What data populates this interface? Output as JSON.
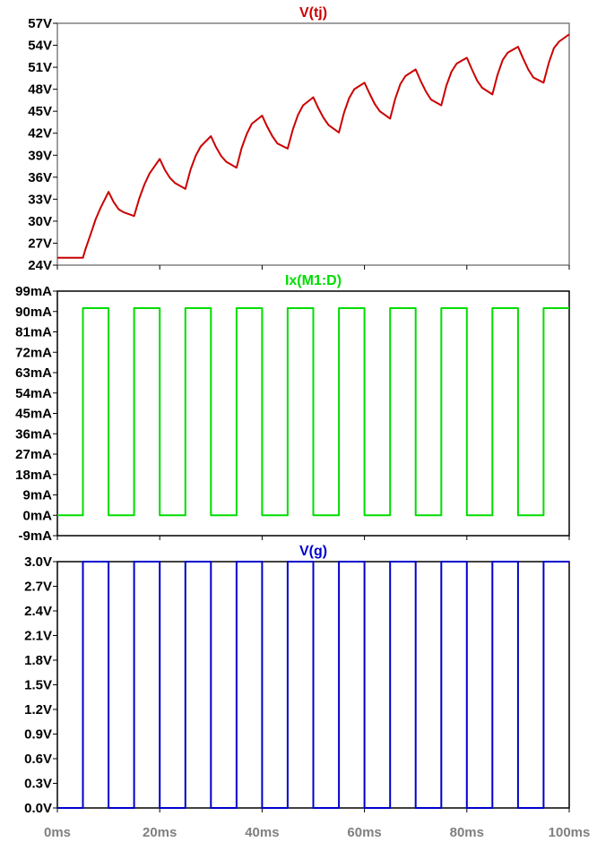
{
  "chart_data": [
    {
      "type": "line",
      "title": "V(tj)",
      "color": "#cc0000",
      "xlim": [
        0,
        100
      ],
      "ylim": [
        24,
        57
      ],
      "yticks": [
        24,
        27,
        30,
        33,
        36,
        39,
        42,
        45,
        48,
        51,
        54,
        57
      ],
      "ytick_labels": [
        "24V",
        "27V",
        "30V",
        "33V",
        "36V",
        "39V",
        "42V",
        "45V",
        "48V",
        "51V",
        "54V",
        "57V"
      ],
      "series": [
        {
          "x": [
            0,
            5,
            5.5,
            6.5,
            7.5,
            8.5,
            10,
            11,
            12,
            13,
            15,
            16,
            17,
            18,
            20,
            21,
            22,
            23,
            25,
            26,
            27,
            28,
            30,
            31,
            32,
            33,
            35,
            36,
            37,
            38,
            40,
            41,
            42,
            43,
            45,
            46,
            47,
            48,
            50,
            51,
            52,
            53,
            55,
            56,
            57,
            58,
            60,
            61,
            62,
            63,
            65,
            66,
            67,
            68,
            70,
            71,
            72,
            73,
            75,
            76,
            77,
            78,
            80,
            81,
            82,
            83,
            85,
            86,
            87,
            88,
            90,
            91,
            92,
            93,
            95,
            96,
            97,
            98,
            100
          ],
          "y": [
            25,
            25,
            26.2,
            28.2,
            30.3,
            31.9,
            34,
            32.6,
            31.6,
            31.2,
            30.7,
            33.1,
            35,
            36.5,
            38.5,
            37,
            35.9,
            35.2,
            34.4,
            37,
            38.9,
            40.2,
            41.6,
            40.1,
            38.9,
            38.1,
            37.3,
            40,
            41.9,
            43.3,
            44.4,
            42.9,
            41.6,
            40.6,
            39.9,
            42.5,
            44.5,
            45.8,
            46.9,
            45.4,
            44.1,
            43.1,
            42.1,
            44.8,
            46.8,
            48,
            48.9,
            47.4,
            46,
            45,
            44,
            46.7,
            48.7,
            49.8,
            50.7,
            49.1,
            47.7,
            46.6,
            45.8,
            48.5,
            50.4,
            51.5,
            52.3,
            50.7,
            49.2,
            48.2,
            47.3,
            50,
            52,
            53,
            53.8,
            52.2,
            50.7,
            49.6,
            48.9,
            51.6,
            53.6,
            54.5,
            55.5
          ]
        }
      ]
    },
    {
      "type": "line",
      "title": "Ix(M1:D)",
      "color": "#00dd00",
      "xlim": [
        0,
        100
      ],
      "ylim": [
        -9,
        99
      ],
      "yticks": [
        -9,
        0,
        9,
        18,
        27,
        36,
        45,
        54,
        63,
        72,
        81,
        90,
        99
      ],
      "ytick_labels": [
        "-9mA",
        "0mA",
        "9mA",
        "18mA",
        "27mA",
        "36mA",
        "45mA",
        "54mA",
        "63mA",
        "72mA",
        "81mA",
        "90mA",
        "99mA"
      ],
      "series": [
        {
          "period_ms": 10,
          "high_start_ms": 5,
          "high_end_ms": 10,
          "low_value": 0,
          "high_value": 91.5,
          "x_start": 0,
          "x_end": 100
        }
      ]
    },
    {
      "type": "line",
      "title": "V(g)",
      "color": "#0000cc",
      "xlim": [
        0,
        100
      ],
      "ylim": [
        0,
        3
      ],
      "yticks": [
        0,
        0.3,
        0.6,
        0.9,
        1.2,
        1.5,
        1.8,
        2.1,
        2.4,
        2.7,
        3.0
      ],
      "ytick_labels": [
        "0.0V",
        "0.3V",
        "0.6V",
        "0.9V",
        "1.2V",
        "1.5V",
        "1.8V",
        "2.1V",
        "2.4V",
        "2.7V",
        "3.0V"
      ],
      "xticks": [
        0,
        20,
        40,
        60,
        80,
        100
      ],
      "xtick_labels": [
        "0ms",
        "20ms",
        "40ms",
        "60ms",
        "80ms",
        "100ms"
      ],
      "series": [
        {
          "period_ms": 10,
          "high_start_ms": 5,
          "high_end_ms": 10,
          "low_value": 0,
          "high_value": 3.0,
          "x_start": 0,
          "x_end": 100
        }
      ]
    }
  ]
}
